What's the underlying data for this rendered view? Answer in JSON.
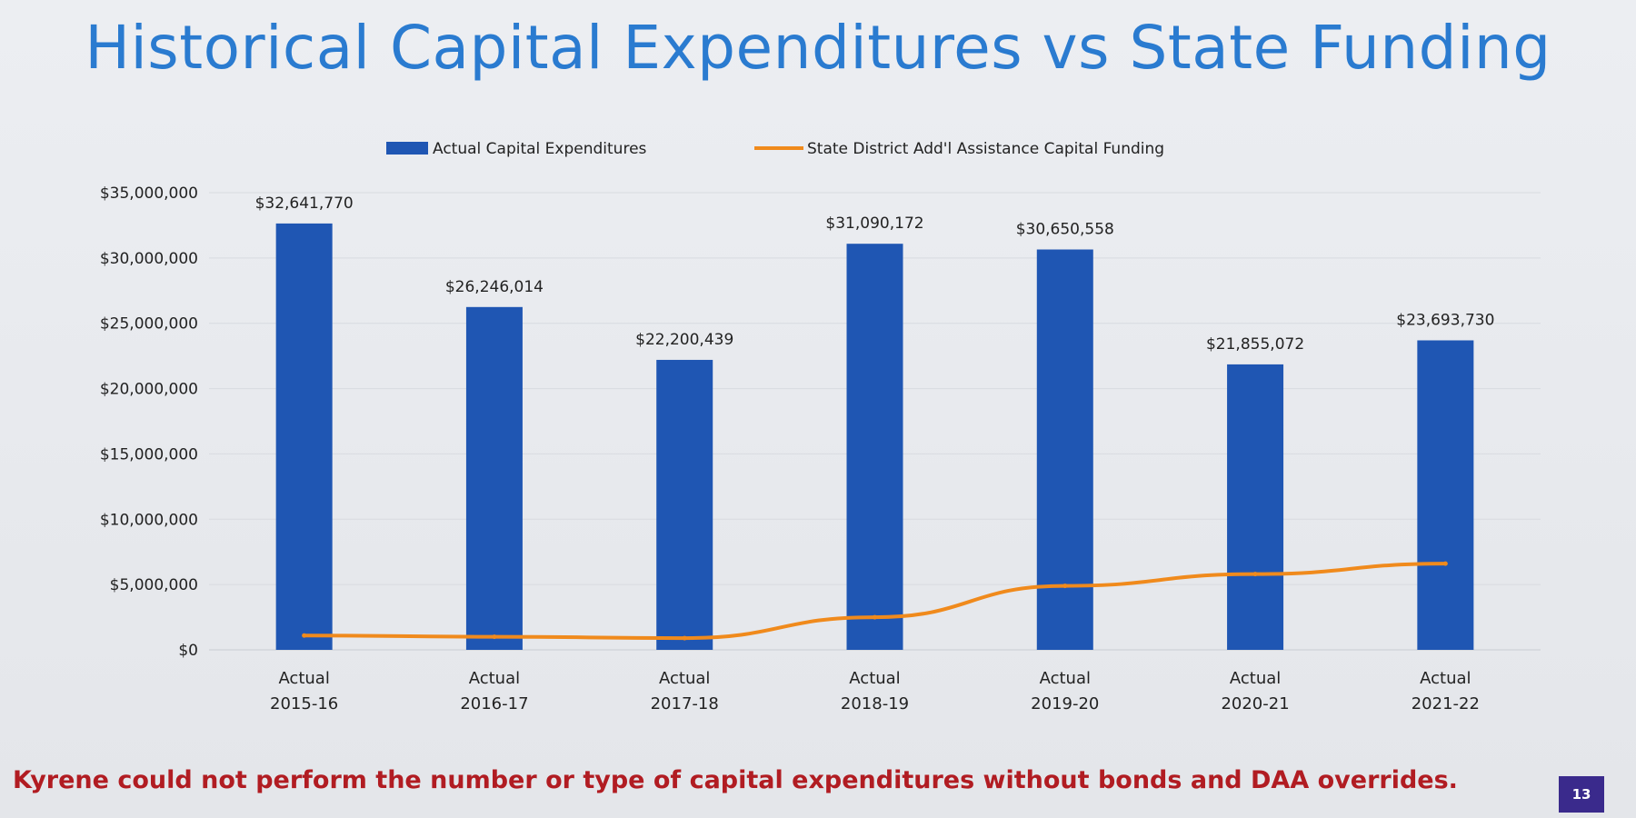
{
  "slide": {
    "title": "Historical Capital Expenditures vs State Funding",
    "footer_note": "Kyrene could not perform the number or type of capital expenditures without bonds and DAA overrides.",
    "page_number": "13"
  },
  "colors": {
    "title": "#2a7bd0",
    "bar": "#1f56b3",
    "line": "#f08a1c",
    "footer": "#b11c22",
    "badge": "#3a2a8c"
  },
  "chart_data": {
    "type": "bar",
    "title": "Historical Capital Expenditures vs State Funding",
    "xlabel": "",
    "ylabel": "",
    "ylim": [
      0,
      35000000
    ],
    "grid": true,
    "legend_position": "top",
    "categories": [
      [
        "Actual",
        "2015-16"
      ],
      [
        "Actual",
        "2016-17"
      ],
      [
        "Actual",
        "2017-18"
      ],
      [
        "Actual",
        "2018-19"
      ],
      [
        "Actual",
        "2019-20"
      ],
      [
        "Actual",
        "2020-21"
      ],
      [
        "Actual",
        "2021-22"
      ]
    ],
    "y_ticks": [
      {
        "value": 0,
        "label": "$0"
      },
      {
        "value": 5000000,
        "label": "$5,000,000"
      },
      {
        "value": 10000000,
        "label": "$10,000,000"
      },
      {
        "value": 15000000,
        "label": "$15,000,000"
      },
      {
        "value": 20000000,
        "label": "$20,000,000"
      },
      {
        "value": 25000000,
        "label": "$25,000,000"
      },
      {
        "value": 30000000,
        "label": "$30,000,000"
      },
      {
        "value": 35000000,
        "label": "$35,000,000"
      }
    ],
    "series": [
      {
        "name": "Actual Capital Expenditures",
        "type": "bar",
        "values": [
          32641770,
          26246014,
          22200439,
          31090172,
          30650558,
          21855072,
          23693730
        ],
        "labels": [
          "$32,641,770",
          "$26,246,014",
          "$22,200,439",
          "$31,090,172",
          "$30,650,558",
          "$21,855,072",
          "$23,693,730"
        ]
      },
      {
        "name": "State District Add'l Assistance Capital Funding",
        "type": "line",
        "values": [
          1100000,
          1000000,
          900000,
          2500000,
          4900000,
          5800000,
          6600000
        ]
      }
    ]
  }
}
